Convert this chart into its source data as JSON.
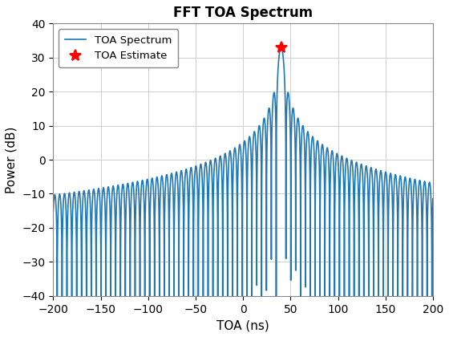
{
  "title": "FFT TOA Spectrum",
  "xlabel": "TOA (ns)",
  "ylabel": "Power (dB)",
  "xlim": [
    -200,
    200
  ],
  "ylim": [
    -40,
    40
  ],
  "toa_estimate_x": 40,
  "toa_estimate_y": 33,
  "line_color": "#1f77b4",
  "marker_color": "red",
  "marker_style": "*",
  "marker_size": 10,
  "line_width": 1.2,
  "legend_labels": [
    "TOA Spectrum",
    "TOA Estimate"
  ],
  "grid_color": "#D0D0D0",
  "background_color": "#FFFFFF",
  "title_fontsize": 12,
  "label_fontsize": 11,
  "tick_fontsize": 10,
  "xticks": [
    -200,
    -150,
    -100,
    -50,
    0,
    50,
    100,
    150,
    200
  ],
  "yticks": [
    -40,
    -30,
    -20,
    -10,
    0,
    10,
    20,
    30,
    40
  ]
}
